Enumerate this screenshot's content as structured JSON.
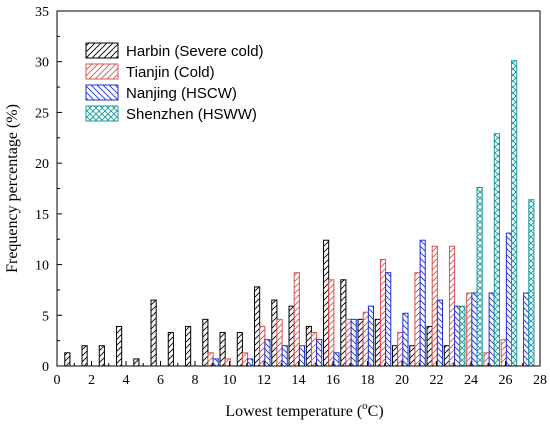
{
  "chart_data": {
    "type": "bar",
    "xlabel": "Lowest temperature (°C)",
    "xlabel_main": "Lowest temperature (",
    "xlabel_unit_sup": "o",
    "xlabel_unit_tail": "C)",
    "ylabel": "Frequency percentage (%)",
    "xlim": [
      0,
      28
    ],
    "ylim": [
      0,
      35
    ],
    "x_ticks": [
      0,
      2,
      4,
      6,
      8,
      10,
      12,
      14,
      16,
      18,
      20,
      22,
      24,
      26,
      28
    ],
    "y_ticks": [
      0,
      5,
      10,
      15,
      20,
      25,
      30,
      35
    ],
    "grid": false,
    "legend_position": "top-left",
    "series": [
      {
        "name": "Harbin (Severe cold)",
        "color": "#000000",
        "pattern": "diagonal-fwd",
        "points": [
          [
            0.6,
            1.3
          ],
          [
            1.6,
            2.0
          ],
          [
            2.6,
            2.0
          ],
          [
            3.6,
            3.9
          ],
          [
            4.6,
            0.7
          ],
          [
            5.6,
            6.5
          ],
          [
            6.6,
            3.3
          ],
          [
            7.6,
            3.9
          ],
          [
            8.6,
            4.6
          ],
          [
            9.6,
            3.3
          ],
          [
            10.6,
            3.3
          ],
          [
            11.6,
            7.8
          ],
          [
            12.6,
            6.5
          ],
          [
            13.6,
            5.9
          ],
          [
            14.6,
            3.9
          ],
          [
            15.6,
            12.4
          ],
          [
            16.6,
            8.5
          ],
          [
            17.6,
            4.6
          ],
          [
            18.6,
            4.6
          ],
          [
            19.6,
            2.0
          ],
          [
            20.6,
            2.0
          ],
          [
            21.6,
            3.9
          ],
          [
            22.6,
            2.0
          ]
        ]
      },
      {
        "name": "Tianjin (Cold)",
        "color": "#d9534f",
        "pattern": "diagonal-fwd",
        "points": [
          [
            8.9,
            1.3
          ],
          [
            9.9,
            0.7
          ],
          [
            10.9,
            1.3
          ],
          [
            11.9,
            3.9
          ],
          [
            12.9,
            4.6
          ],
          [
            13.9,
            9.2
          ],
          [
            14.9,
            3.3
          ],
          [
            15.9,
            8.5
          ],
          [
            16.9,
            4.6
          ],
          [
            17.9,
            5.3
          ],
          [
            18.9,
            10.5
          ],
          [
            19.9,
            3.3
          ],
          [
            20.9,
            9.2
          ],
          [
            21.9,
            11.8
          ],
          [
            22.9,
            11.8
          ],
          [
            23.9,
            7.2
          ],
          [
            24.9,
            1.3
          ],
          [
            25.9,
            2.6
          ]
        ]
      },
      {
        "name": "Nanjing (HSCW)",
        "color": "#1f2fd0",
        "pattern": "diagonal-back",
        "points": [
          [
            9.2,
            0.7
          ],
          [
            11.2,
            0.7
          ],
          [
            12.2,
            2.6
          ],
          [
            13.2,
            2.0
          ],
          [
            14.2,
            2.0
          ],
          [
            15.2,
            2.6
          ],
          [
            16.2,
            1.3
          ],
          [
            17.2,
            4.6
          ],
          [
            18.2,
            5.9
          ],
          [
            19.2,
            9.2
          ],
          [
            20.2,
            5.2
          ],
          [
            21.2,
            12.4
          ],
          [
            22.2,
            6.5
          ],
          [
            23.2,
            5.9
          ],
          [
            24.2,
            7.2
          ],
          [
            25.2,
            7.2
          ],
          [
            26.2,
            13.1
          ],
          [
            27.2,
            7.2
          ]
        ]
      },
      {
        "name": "Shenzhen (HSWW)",
        "color": "#1a9a9a",
        "pattern": "crosshatch",
        "points": [
          [
            23.5,
            5.9
          ],
          [
            24.5,
            17.6
          ],
          [
            25.5,
            22.9
          ],
          [
            26.5,
            30.1
          ],
          [
            27.5,
            16.4
          ]
        ]
      }
    ]
  }
}
